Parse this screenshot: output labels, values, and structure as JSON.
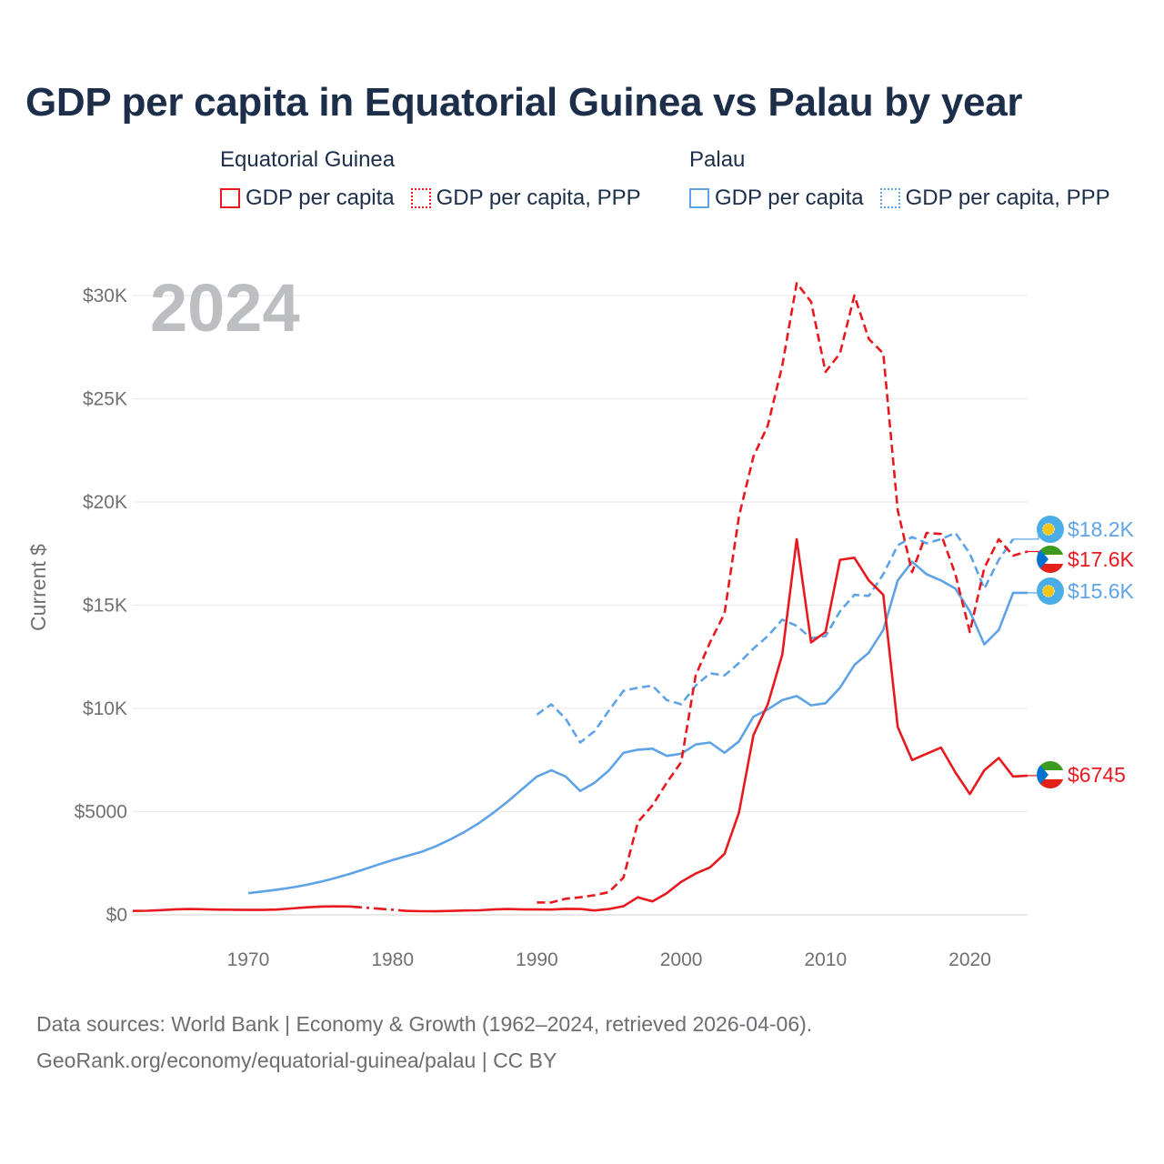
{
  "title": "GDP per capita in Equatorial Guinea vs Palau by year",
  "year_overlay": "2024",
  "legend": [
    {
      "country": "Equatorial Guinea",
      "color": "#e8191e",
      "items": [
        {
          "label": "GDP per capita",
          "style": "solid"
        },
        {
          "label": "GDP per capita, PPP",
          "style": "dotted"
        }
      ]
    },
    {
      "country": "Palau",
      "color": "#5ea3e6",
      "items": [
        {
          "label": "GDP per capita",
          "style": "solid"
        },
        {
          "label": "GDP per capita, PPP",
          "style": "dotted"
        }
      ]
    }
  ],
  "footer": {
    "line1": "Data sources: World Bank | Economy & Growth (1962–2024, retrieved 2026-04-06).",
    "line2": "GeoRank.org/economy/equatorial-guinea/palau | CC BY"
  },
  "chart_data": {
    "type": "line",
    "title": "GDP per capita in Equatorial Guinea vs Palau by year",
    "ylabel": "Current $",
    "xlabel": "",
    "xlim": [
      1962,
      2024
    ],
    "ylim": [
      0,
      30000
    ],
    "x_ticks": [
      {
        "value": 1970,
        "label": "1970"
      },
      {
        "value": 1980,
        "label": "1980"
      },
      {
        "value": 1990,
        "label": "1990"
      },
      {
        "value": 2000,
        "label": "2000"
      },
      {
        "value": 2010,
        "label": "2010"
      },
      {
        "value": 2020,
        "label": "2020"
      }
    ],
    "y_ticks": [
      {
        "value": 0,
        "label": "$0"
      },
      {
        "value": 5000,
        "label": "$5000"
      },
      {
        "value": 10000,
        "label": "$10K"
      },
      {
        "value": 15000,
        "label": "$15K"
      },
      {
        "value": 20000,
        "label": "$20K"
      },
      {
        "value": 25000,
        "label": "$25K"
      },
      {
        "value": 30000,
        "label": "$30K"
      }
    ],
    "series": [
      {
        "name": "Palau GDP per capita, PPP",
        "country": "Palau",
        "color": "#5ea3e6",
        "dash": "dashed",
        "end_label": "$18.2K",
        "points": [
          [
            1990,
            9700
          ],
          [
            1991,
            10200
          ],
          [
            1992,
            9500
          ],
          [
            1993,
            8350
          ],
          [
            1994,
            8900
          ],
          [
            1995,
            9900
          ],
          [
            1996,
            10850
          ],
          [
            1997,
            11000
          ],
          [
            1998,
            11100
          ],
          [
            1999,
            10400
          ],
          [
            2000,
            10200
          ],
          [
            2001,
            11100
          ],
          [
            2002,
            11700
          ],
          [
            2003,
            11600
          ],
          [
            2004,
            12200
          ],
          [
            2005,
            12900
          ],
          [
            2006,
            13500
          ],
          [
            2007,
            14300
          ],
          [
            2008,
            14000
          ],
          [
            2009,
            13400
          ],
          [
            2010,
            13500
          ],
          [
            2011,
            14700
          ],
          [
            2012,
            15500
          ],
          [
            2013,
            15450
          ],
          [
            2014,
            16500
          ],
          [
            2015,
            17900
          ],
          [
            2016,
            18300
          ],
          [
            2017,
            18000
          ],
          [
            2018,
            18200
          ],
          [
            2019,
            18500
          ],
          [
            2020,
            17500
          ],
          [
            2021,
            15800
          ],
          [
            2022,
            17200
          ],
          [
            2023,
            18200
          ]
        ]
      },
      {
        "name": "Palau GDP per capita",
        "country": "Palau",
        "color": "#5ea3e6",
        "dash": "solid",
        "end_label": "$15.6K",
        "points": [
          [
            1970,
            1050
          ],
          [
            1971,
            1130
          ],
          [
            1972,
            1220
          ],
          [
            1973,
            1320
          ],
          [
            1974,
            1450
          ],
          [
            1975,
            1600
          ],
          [
            1976,
            1780
          ],
          [
            1977,
            1980
          ],
          [
            1978,
            2200
          ],
          [
            1979,
            2430
          ],
          [
            1980,
            2650
          ],
          [
            1981,
            2850
          ],
          [
            1982,
            3050
          ],
          [
            1983,
            3320
          ],
          [
            1984,
            3650
          ],
          [
            1985,
            4020
          ],
          [
            1986,
            4450
          ],
          [
            1987,
            4950
          ],
          [
            1988,
            5500
          ],
          [
            1989,
            6100
          ],
          [
            1990,
            6700
          ],
          [
            1991,
            7000
          ],
          [
            1992,
            6700
          ],
          [
            1993,
            6000
          ],
          [
            1994,
            6400
          ],
          [
            1995,
            7000
          ],
          [
            1996,
            7850
          ],
          [
            1997,
            8000
          ],
          [
            1998,
            8050
          ],
          [
            1999,
            7700
          ],
          [
            2000,
            7800
          ],
          [
            2001,
            8250
          ],
          [
            2002,
            8350
          ],
          [
            2003,
            7850
          ],
          [
            2004,
            8400
          ],
          [
            2005,
            9600
          ],
          [
            2006,
            9950
          ],
          [
            2007,
            10400
          ],
          [
            2008,
            10600
          ],
          [
            2009,
            10150
          ],
          [
            2010,
            10250
          ],
          [
            2011,
            11000
          ],
          [
            2012,
            12100
          ],
          [
            2013,
            12700
          ],
          [
            2014,
            13800
          ],
          [
            2015,
            16200
          ],
          [
            2016,
            17100
          ],
          [
            2017,
            16500
          ],
          [
            2018,
            16200
          ],
          [
            2019,
            15800
          ],
          [
            2020,
            14700
          ],
          [
            2021,
            13100
          ],
          [
            2022,
            13800
          ],
          [
            2023,
            15600
          ],
          [
            2024,
            15600
          ]
        ]
      },
      {
        "name": "Equatorial Guinea GDP per capita, PPP",
        "country": "Equatorial Guinea",
        "color": "#e8191e",
        "dash": "dashed",
        "end_label": "$17.6K",
        "points": [
          [
            1990,
            600
          ],
          [
            1991,
            600
          ],
          [
            1992,
            780
          ],
          [
            1993,
            850
          ],
          [
            1994,
            950
          ],
          [
            1995,
            1100
          ],
          [
            1996,
            1800
          ],
          [
            1997,
            4500
          ],
          [
            1998,
            5300
          ],
          [
            1999,
            6400
          ],
          [
            2000,
            7400
          ],
          [
            2001,
            11600
          ],
          [
            2002,
            13200
          ],
          [
            2003,
            14600
          ],
          [
            2004,
            19300
          ],
          [
            2005,
            22200
          ],
          [
            2006,
            23700
          ],
          [
            2007,
            26600
          ],
          [
            2008,
            30600
          ],
          [
            2009,
            29700
          ],
          [
            2010,
            26300
          ],
          [
            2011,
            27200
          ],
          [
            2012,
            30000
          ],
          [
            2013,
            27900
          ],
          [
            2014,
            27200
          ],
          [
            2015,
            19600
          ],
          [
            2016,
            16600
          ],
          [
            2017,
            18500
          ],
          [
            2018,
            18450
          ],
          [
            2019,
            16500
          ],
          [
            2020,
            13700
          ],
          [
            2021,
            16800
          ],
          [
            2022,
            18200
          ],
          [
            2023,
            17400
          ],
          [
            2024,
            17600
          ]
        ]
      },
      {
        "name": "Equatorial Guinea GDP per capita",
        "country": "Equatorial Guinea",
        "color": "#e8191e",
        "dash": "solid",
        "end_label": "$6745",
        "points": [
          [
            1962,
            190
          ],
          [
            1963,
            200
          ],
          [
            1964,
            230
          ],
          [
            1965,
            270
          ],
          [
            1966,
            280
          ],
          [
            1967,
            270
          ],
          [
            1968,
            250
          ],
          [
            1969,
            245
          ],
          [
            1970,
            240
          ],
          [
            1971,
            240
          ],
          [
            1972,
            255
          ],
          [
            1973,
            310
          ],
          [
            1974,
            360
          ],
          [
            1975,
            400
          ],
          [
            1976,
            410
          ],
          [
            1977,
            405
          ],
          [
            1978,
            null
          ],
          [
            1979,
            null
          ],
          [
            1980,
            null
          ],
          [
            1981,
            190
          ],
          [
            1982,
            175
          ],
          [
            1983,
            170
          ],
          [
            1984,
            190
          ],
          [
            1985,
            210
          ],
          [
            1986,
            220
          ],
          [
            1987,
            260
          ],
          [
            1988,
            280
          ],
          [
            1989,
            260
          ],
          [
            1990,
            260
          ],
          [
            1991,
            255
          ],
          [
            1992,
            290
          ],
          [
            1993,
            280
          ],
          [
            1994,
            210
          ],
          [
            1995,
            280
          ],
          [
            1996,
            420
          ],
          [
            1997,
            850
          ],
          [
            1998,
            650
          ],
          [
            1999,
            1050
          ],
          [
            2000,
            1600
          ],
          [
            2001,
            2000
          ],
          [
            2002,
            2300
          ],
          [
            2003,
            2950
          ],
          [
            2004,
            4950
          ],
          [
            2005,
            8700
          ],
          [
            2006,
            10200
          ],
          [
            2007,
            12600
          ],
          [
            2008,
            18200
          ],
          [
            2009,
            13200
          ],
          [
            2010,
            13700
          ],
          [
            2011,
            17200
          ],
          [
            2012,
            17300
          ],
          [
            2013,
            16200
          ],
          [
            2014,
            15500
          ],
          [
            2015,
            9100
          ],
          [
            2016,
            7500
          ],
          [
            2017,
            7800
          ],
          [
            2018,
            8100
          ],
          [
            2019,
            6900
          ],
          [
            2020,
            5850
          ],
          [
            2021,
            7000
          ],
          [
            2022,
            7600
          ],
          [
            2023,
            6700
          ],
          [
            2024,
            6745
          ]
        ]
      }
    ],
    "gap_segment": {
      "series": "Equatorial Guinea GDP per capita",
      "points": [
        [
          1977,
          405
        ],
        [
          1979,
          300
        ],
        [
          1981,
          190
        ]
      ],
      "style": "dash-dot"
    }
  }
}
